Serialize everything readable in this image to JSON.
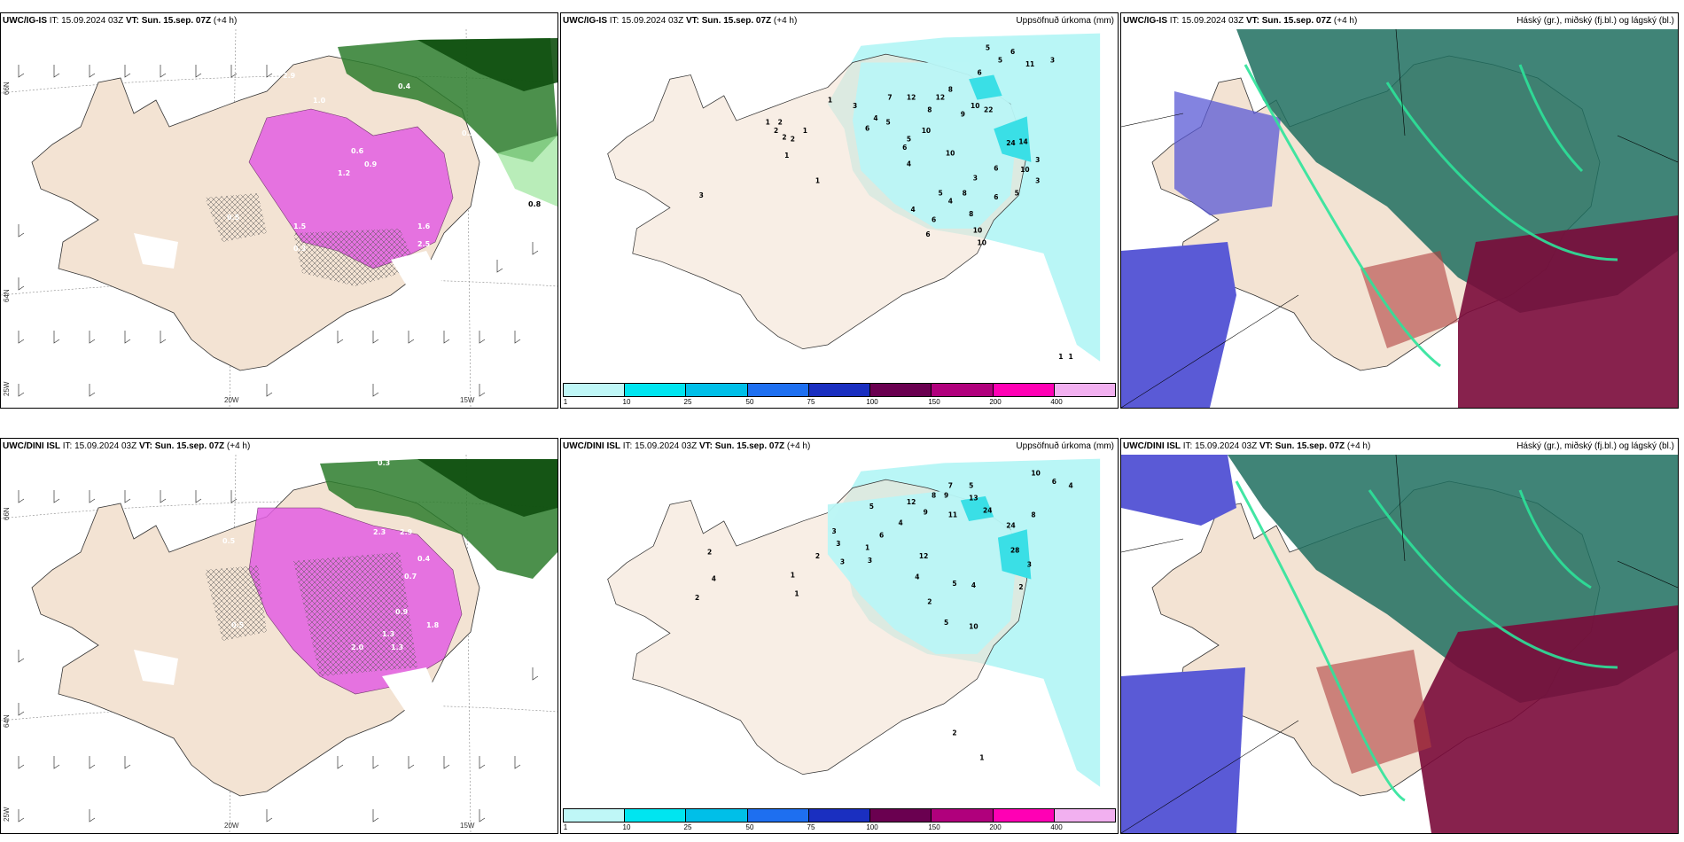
{
  "panels": [
    {
      "model": "UWC/IG-IS",
      "it": "IT: 15.09.2024 03Z",
      "vt_label": "VT:",
      "vt": "Sun. 15.sep. 07Z",
      "lead": "(+4 h)",
      "right_title": ""
    },
    {
      "model": "UWC/IG-IS",
      "it": "IT: 15.09.2024 03Z",
      "vt_label": "VT:",
      "vt": "Sun. 15.sep. 07Z",
      "lead": "(+4 h)",
      "right_title": "Uppsöfnuð úrkoma (mm)"
    },
    {
      "model": "UWC/IG-IS",
      "it": "IT: 15.09.2024 03Z",
      "vt_label": "VT:",
      "vt": "Sun. 15.sep. 07Z",
      "lead": "(+4 h)",
      "right_title": "Háský (gr.), miðský (fj.bl.) og lágský (bl.)"
    },
    {
      "model": "UWC/DINI ISL",
      "it": "IT: 15.09.2024 03Z",
      "vt_label": "VT:",
      "vt": "Sun. 15.sep. 07Z",
      "lead": "(+4 h)",
      "right_title": ""
    },
    {
      "model": "UWC/DINI ISL",
      "it": "IT: 15.09.2024 03Z",
      "vt_label": "VT:",
      "vt": "Sun. 15.sep. 07Z",
      "lead": "(+4 h)",
      "right_title": "Uppsöfnuð úrkoma (mm)"
    },
    {
      "model": "UWC/DINI ISL",
      "it": "IT: 15.09.2024 03Z",
      "vt_label": "VT:",
      "vt": "Sun. 15.sep. 07Z",
      "lead": "(+4 h)",
      "right_title": "Háský (gr.), miðský (fj.bl.) og lágský (bl.)"
    }
  ],
  "axes": {
    "lat66": "66N",
    "lat64": "64N",
    "lon20": "20W",
    "lon15": "15W",
    "lon25": "25W"
  },
  "colorbar": {
    "labels": [
      "1",
      "10",
      "25",
      "50",
      "75",
      "100",
      "150",
      "200",
      "400"
    ],
    "colors": [
      "#bff7f7",
      "#00e5f0",
      "#00bfe8",
      "#1e6ff0",
      "#1a2fc0",
      "#6a0050",
      "#b0007c",
      "#ff00b4",
      "#f2b0f0"
    ]
  },
  "colors": {
    "land": "#f3e3d3",
    "precip": "#b9f6f6",
    "snow": "#e65ce6",
    "rain": "#1f6b1f",
    "low": "#5a5ad6",
    "mid": "#7a0a3a",
    "high": "#2aa58a"
  },
  "precip_labels_top": [
    "5",
    "6",
    "5",
    "11",
    "3",
    "1",
    "8",
    "6",
    "7",
    "8",
    "12",
    "9",
    "10",
    "12",
    "22",
    "5",
    "4",
    "2",
    "1",
    "1",
    "3",
    "2",
    "6",
    "6",
    "10",
    "5",
    "10",
    "6",
    "10",
    "3",
    "24",
    "14",
    "3",
    "6",
    "2",
    "4",
    "5",
    "1",
    "3",
    "1",
    "8",
    "4",
    "6",
    "6",
    "8",
    "4",
    "10",
    "10",
    "3",
    "2",
    "5",
    "1",
    "1"
  ],
  "precip_labels_bottom": [
    "10",
    "6",
    "4",
    "7",
    "5",
    "12",
    "8",
    "9",
    "13",
    "24",
    "11",
    "9",
    "24",
    "8",
    "5",
    "4",
    "12",
    "3",
    "1",
    "3",
    "6",
    "3",
    "2",
    "2",
    "4",
    "3",
    "28",
    "1",
    "3",
    "2",
    "2",
    "4",
    "1",
    "2",
    "5",
    "4",
    "5",
    "10",
    "2",
    "1"
  ],
  "snow_labels_top": [
    "2.9",
    "0.4",
    "1.0",
    "0.9",
    "1.2",
    "0.6",
    "0.5",
    "0.8",
    "0.3",
    "0.2",
    "1.5",
    "2.5",
    "1.6"
  ],
  "snow_labels_bottom": [
    "0.3",
    "0.9",
    "2.0",
    "1.3",
    "0.5",
    "1.8",
    "0.4",
    "2.9",
    "2.3",
    "0.5",
    "1.3",
    "0.7"
  ]
}
